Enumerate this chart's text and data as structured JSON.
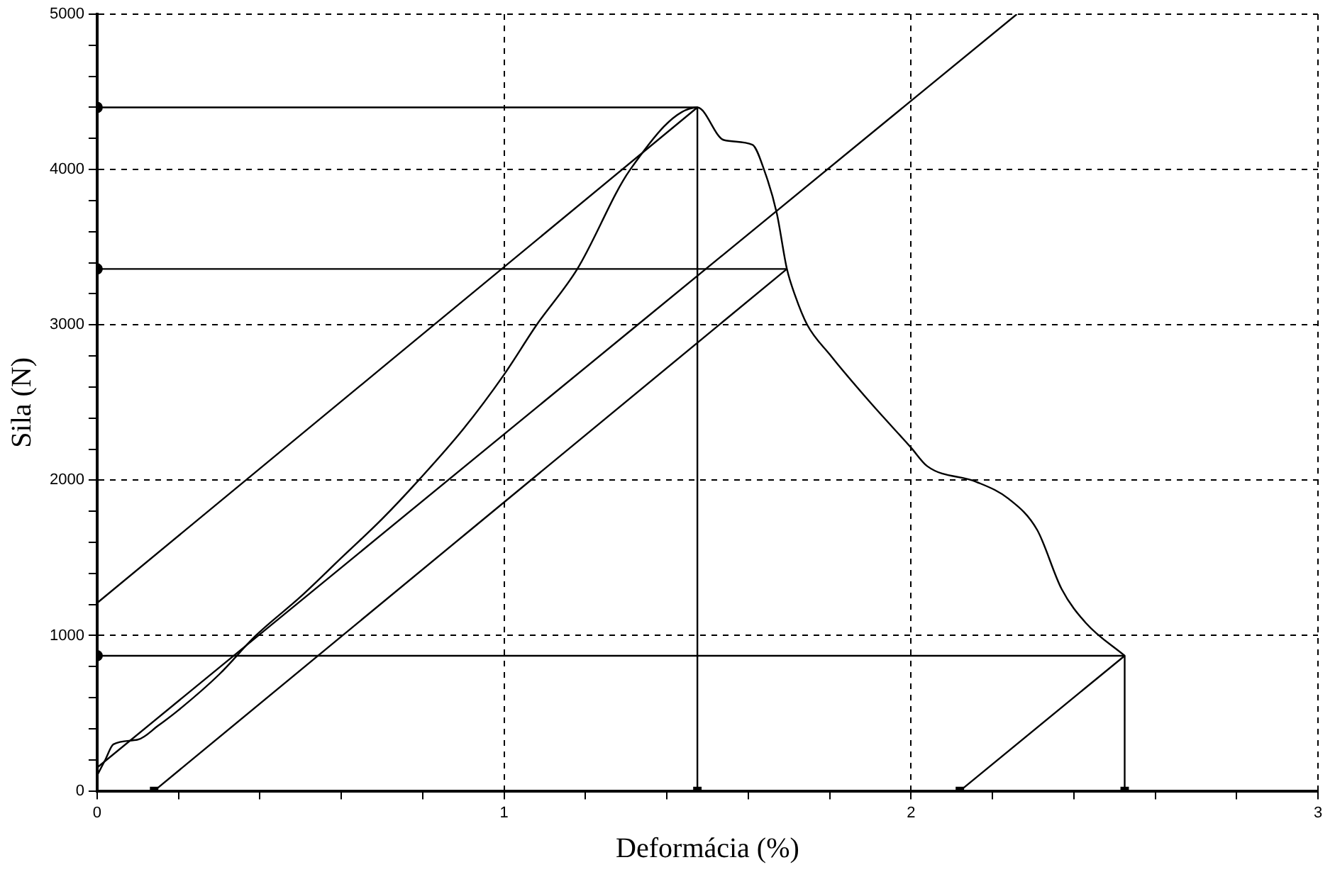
{
  "chart_data": {
    "type": "line",
    "xlabel": "Deformácia (%)",
    "ylabel": "Sila (N)",
    "xlim": [
      0,
      3
    ],
    "ylim": [
      0,
      5000
    ],
    "xticks": [
      0,
      {
        "value": 0.2,
        "label": null
      },
      {
        "value": 0.4,
        "label": null
      },
      {
        "value": 0.6,
        "label": null
      },
      {
        "value": 0.8,
        "label": null
      },
      1,
      {
        "value": 1.2,
        "label": null
      },
      {
        "value": 1.4,
        "label": null
      },
      {
        "value": 1.6,
        "label": null
      },
      {
        "value": 1.8,
        "label": null
      },
      2,
      {
        "value": 2.2,
        "label": null
      },
      {
        "value": 2.4,
        "label": null
      },
      {
        "value": 2.6,
        "label": null
      },
      {
        "value": 2.8,
        "label": null
      },
      3
    ],
    "yticks": [
      0,
      {
        "value": 200,
        "label": null
      },
      {
        "value": 400,
        "label": null
      },
      {
        "value": 600,
        "label": null
      },
      {
        "value": 800,
        "label": null
      },
      1000,
      {
        "value": 1200,
        "label": null
      },
      {
        "value": 1400,
        "label": null
      },
      {
        "value": 1600,
        "label": null
      },
      {
        "value": 1800,
        "label": null
      },
      2000,
      {
        "value": 2200,
        "label": null
      },
      {
        "value": 2400,
        "label": null
      },
      {
        "value": 2600,
        "label": null
      },
      {
        "value": 2800,
        "label": null
      },
      3000,
      {
        "value": 3200,
        "label": null
      },
      {
        "value": 3400,
        "label": null
      },
      {
        "value": 3600,
        "label": null
      },
      {
        "value": 3800,
        "label": null
      },
      4000,
      {
        "value": 4200,
        "label": null
      },
      {
        "value": 4400,
        "label": null
      },
      {
        "value": 4600,
        "label": null
      },
      {
        "value": 4800,
        "label": null
      },
      5000
    ],
    "grid": true,
    "marker": "none",
    "line_style": "solid",
    "series": [
      {
        "color": "#000000",
        "x": [
          0,
          0.02,
          0.04,
          0.1,
          0.15,
          0.2,
          0.3,
          0.39,
          0.5,
          0.6,
          0.7,
          0.79,
          0.9,
          1.0,
          1.08,
          1.18,
          1.31,
          1.475,
          1.54,
          1.61,
          1.64,
          1.67,
          1.695,
          1.715,
          1.745,
          1.8,
          1.9,
          2.0,
          2.04,
          2.16,
          2.24,
          2.31,
          2.37,
          2.43,
          2.525
        ],
        "values": [
          100,
          200,
          300,
          330,
          420,
          520,
          750,
          1000,
          1250,
          1500,
          1750,
          2000,
          2330,
          2680,
          3000,
          3360,
          4000,
          4400,
          4190,
          4160,
          3990,
          3720,
          3360,
          3190,
          3000,
          2810,
          2500,
          2210,
          2090,
          1990,
          1880,
          1680,
          1300,
          1080,
          870
        ]
      },
      {
        "color": "#000000",
        "x": [
          0,
          1.475
        ],
        "values": [
          1210,
          4400
        ]
      },
      {
        "color": "#000000",
        "x": [
          0,
          2.26
        ],
        "values": [
          150,
          5000
        ]
      },
      {
        "color": "#000000",
        "x": [
          0.14,
          1.695
        ],
        "values": [
          0,
          3360
        ]
      },
      {
        "color": "#000000",
        "x": [
          2.12,
          2.525
        ],
        "values": [
          0,
          870
        ]
      },
      {
        "color": "#000000",
        "x": [
          0,
          1.475,
          1.475
        ],
        "values": [
          4400,
          4400,
          0
        ]
      },
      {
        "color": "#000000",
        "x": [
          0,
          1.695
        ],
        "values": [
          3360,
          3360
        ]
      },
      {
        "color": "#000000",
        "x": [
          0,
          2.525,
          2.525
        ],
        "values": [
          870,
          870,
          0
        ]
      },
      {
        "type": "scatter",
        "color": "#000000",
        "marker": "circle",
        "x": [
          0,
          0,
          0
        ],
        "values": [
          4400,
          3360,
          870
        ]
      },
      {
        "type": "scatter",
        "color": "#000000",
        "marker": "square",
        "x": [
          0.14,
          1.475,
          2.12,
          2.525
        ],
        "values": [
          0,
          0,
          0,
          0
        ]
      }
    ]
  }
}
